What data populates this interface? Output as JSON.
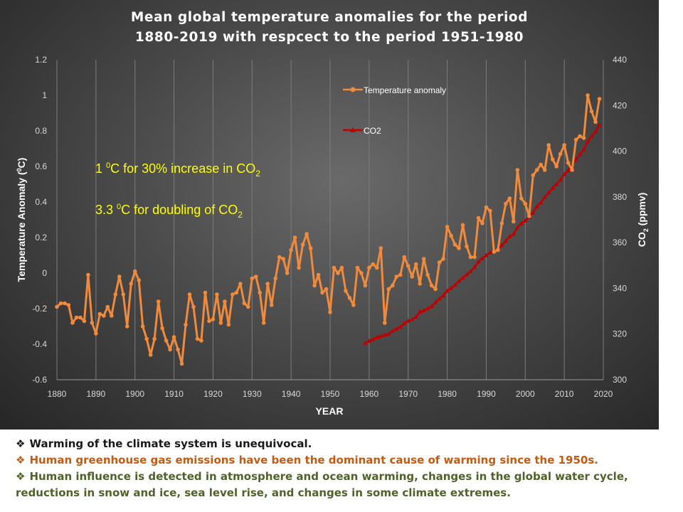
{
  "chart_data": {
    "type": "line",
    "title_lines": [
      "Mean global temperature anomalies for the period",
      "1880-2019  with  respcect  to  the  period  1951-1980"
    ],
    "xlabel": "YEAR",
    "ylabel": "Temperature Anomaly (°C)",
    "ylabel_main": "Temperature Anomaly (",
    "ylabel_unit": "0",
    "ylabel_tail": "C)",
    "y2label": "CO2 (ppmv)",
    "y2label_main": "CO",
    "y2label_sub": "2",
    "y2label_tail": " (ppmv)",
    "xlim": [
      1880,
      2020
    ],
    "ylim": [
      -0.6,
      1.2
    ],
    "y2lim": [
      300,
      440
    ],
    "x_ticks": [
      1880,
      1890,
      1900,
      1910,
      1920,
      1930,
      1940,
      1950,
      1960,
      1970,
      1980,
      1990,
      2000,
      2010,
      2020
    ],
    "y_ticks": [
      "-0.6",
      "-0.4",
      "-0.2",
      "0",
      "0.2",
      "0.4",
      "0.6",
      "0.8",
      "1",
      "1.2"
    ],
    "y2_ticks": [
      "300",
      "320",
      "340",
      "360",
      "380",
      "400",
      "420",
      "440"
    ],
    "grid": "vertical",
    "legend_position": "top-center",
    "colors": {
      "temperature": "#f08a3c",
      "co2": "#c00000",
      "annotation": "#ffff00"
    },
    "series": [
      {
        "name": "Temperature anomaly",
        "axis": "left",
        "x_start": 1880,
        "values": [
          -0.19,
          -0.17,
          -0.17,
          -0.18,
          -0.28,
          -0.25,
          -0.25,
          -0.27,
          -0.01,
          -0.28,
          -0.34,
          -0.23,
          -0.24,
          -0.19,
          -0.24,
          -0.12,
          -0.02,
          -0.12,
          -0.3,
          -0.06,
          0.01,
          -0.04,
          -0.3,
          -0.37,
          -0.46,
          -0.37,
          -0.16,
          -0.31,
          -0.38,
          -0.43,
          -0.36,
          -0.43,
          -0.51,
          -0.29,
          -0.12,
          -0.19,
          -0.37,
          -0.38,
          -0.11,
          -0.27,
          -0.26,
          -0.12,
          -0.28,
          -0.16,
          -0.29,
          -0.12,
          -0.11,
          -0.06,
          -0.17,
          -0.19,
          -0.03,
          -0.02,
          -0.11,
          -0.28,
          -0.06,
          -0.18,
          -0.03,
          0.09,
          0.08,
          0.0,
          0.13,
          0.2,
          0.03,
          0.16,
          0.22,
          0.14,
          -0.07,
          -0.01,
          -0.11,
          -0.09,
          -0.22,
          0.03,
          0.0,
          0.03,
          -0.1,
          -0.14,
          -0.18,
          0.03,
          0.0,
          -0.07,
          0.03,
          0.05,
          0.03,
          0.14,
          -0.28,
          -0.09,
          -0.07,
          -0.02,
          -0.01,
          0.09,
          0.04,
          -0.02,
          0.05,
          -0.06,
          0.08,
          -0.01,
          -0.07,
          -0.09,
          0.06,
          0.08,
          0.26,
          0.21,
          0.16,
          0.14,
          0.27,
          0.15,
          0.09,
          0.09,
          0.31,
          0.28,
          0.37,
          0.35,
          0.12,
          0.13,
          0.28,
          0.39,
          0.42,
          0.29,
          0.58,
          0.42,
          0.39,
          0.32,
          0.55,
          0.58,
          0.61,
          0.58,
          0.72,
          0.64,
          0.6,
          0.67,
          0.72,
          0.62,
          0.58,
          0.75,
          0.77,
          0.76,
          1.0,
          0.91,
          0.85,
          0.98
        ]
      },
      {
        "name": "CO2",
        "axis": "right",
        "x_start": 1959,
        "values": [
          316.0,
          316.9,
          317.6,
          318.5,
          319.0,
          319.6,
          320.0,
          321.4,
          322.2,
          323.1,
          324.6,
          325.7,
          326.3,
          327.5,
          329.7,
          330.2,
          331.1,
          332.1,
          333.8,
          335.4,
          336.8,
          338.8,
          340.1,
          341.4,
          343.1,
          344.6,
          346.0,
          347.4,
          349.2,
          351.6,
          353.1,
          354.4,
          355.6,
          356.5,
          357.1,
          358.8,
          360.8,
          362.6,
          363.7,
          366.7,
          368.4,
          369.6,
          371.1,
          373.2,
          375.8,
          377.5,
          379.8,
          381.9,
          383.8,
          385.6,
          387.4,
          389.9,
          391.6,
          393.9,
          396.5,
          398.6,
          400.8,
          404.2,
          406.5,
          408.5,
          411.4
        ]
      }
    ],
    "annotations": [
      {
        "pre": "1 ",
        "sup": "0",
        "mid": "C for 30% increase in CO",
        "sub": "2"
      },
      {
        "pre": "3.3 ",
        "sup": "0",
        "mid": "C for doubling of CO",
        "sub": "2"
      }
    ]
  },
  "bullets": [
    {
      "mark": "❖",
      "text": "Warming of the climate system is unequivocal.",
      "color": "#1a1a1a"
    },
    {
      "mark": "❖",
      "text": "Human greenhouse gas emissions have been the dominant cause of warming since the 1950s.",
      "color": "#c55a11"
    },
    {
      "mark": "❖",
      "text": "Human influence is detected in atmosphere and ocean warming, changes in the global water cycle,",
      "color": "#4f6228"
    },
    {
      "mark": "",
      "text": "reductions in snow and ice, sea level rise, and changes in some climate extremes.",
      "color": "#4f6228"
    }
  ]
}
